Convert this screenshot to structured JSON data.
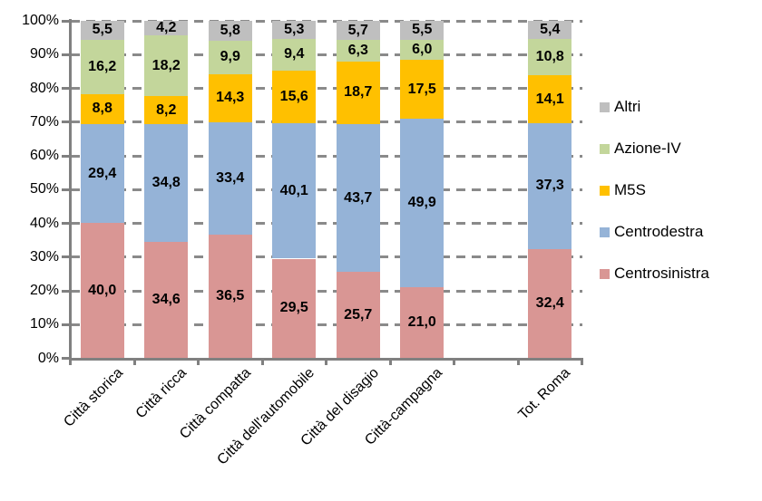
{
  "chart_data": {
    "type": "bar",
    "subtype": "stacked-100-percent",
    "title": "",
    "categories": [
      "Città storica",
      "Città ricca",
      "Città compatta",
      "Città dell'automobile",
      "Città del disagio",
      "Città-campagna",
      "Tot. Roma"
    ],
    "series": [
      {
        "name": "Centrosinistra",
        "color": "#D99694",
        "values": [
          40.0,
          34.6,
          36.5,
          29.5,
          25.7,
          21.0,
          32.4
        ]
      },
      {
        "name": "Centrodestra",
        "color": "#95B3D7",
        "values": [
          29.4,
          34.8,
          33.4,
          40.1,
          43.7,
          49.9,
          37.3
        ]
      },
      {
        "name": "M5S",
        "color": "#FFC000",
        "values": [
          8.8,
          8.2,
          14.3,
          15.6,
          18.7,
          17.5,
          14.1
        ]
      },
      {
        "name": "Azione-IV",
        "color": "#C3D69B",
        "values": [
          16.2,
          18.2,
          9.9,
          9.4,
          6.3,
          6.0,
          10.8
        ]
      },
      {
        "name": "Altri",
        "color": "#BFBFBF",
        "values": [
          5.5,
          4.2,
          5.8,
          5.3,
          5.7,
          5.5,
          5.4
        ]
      }
    ],
    "stack_order": "bottom-to-top",
    "decimal_separator": ",",
    "y_axis": {
      "range": [
        0,
        100
      ],
      "ticks": [
        "0%",
        "10%",
        "20%",
        "30%",
        "40%",
        "50%",
        "60%",
        "70%",
        "80%",
        "90%",
        "100%"
      ],
      "gridlines": "dashed"
    },
    "legend": {
      "position": "right",
      "items_top_to_bottom": [
        "Altri",
        "Azione-IV",
        "M5S",
        "Centrodestra",
        "Centrosinistra"
      ]
    },
    "layout_hints": {
      "gap_before_last_category": true,
      "x_labels_rotation_deg": 45
    },
    "style_colors": {
      "grid": "#8A8A8A",
      "axis": "#808080",
      "text": "#000000",
      "background": "#FFFFFF"
    }
  }
}
